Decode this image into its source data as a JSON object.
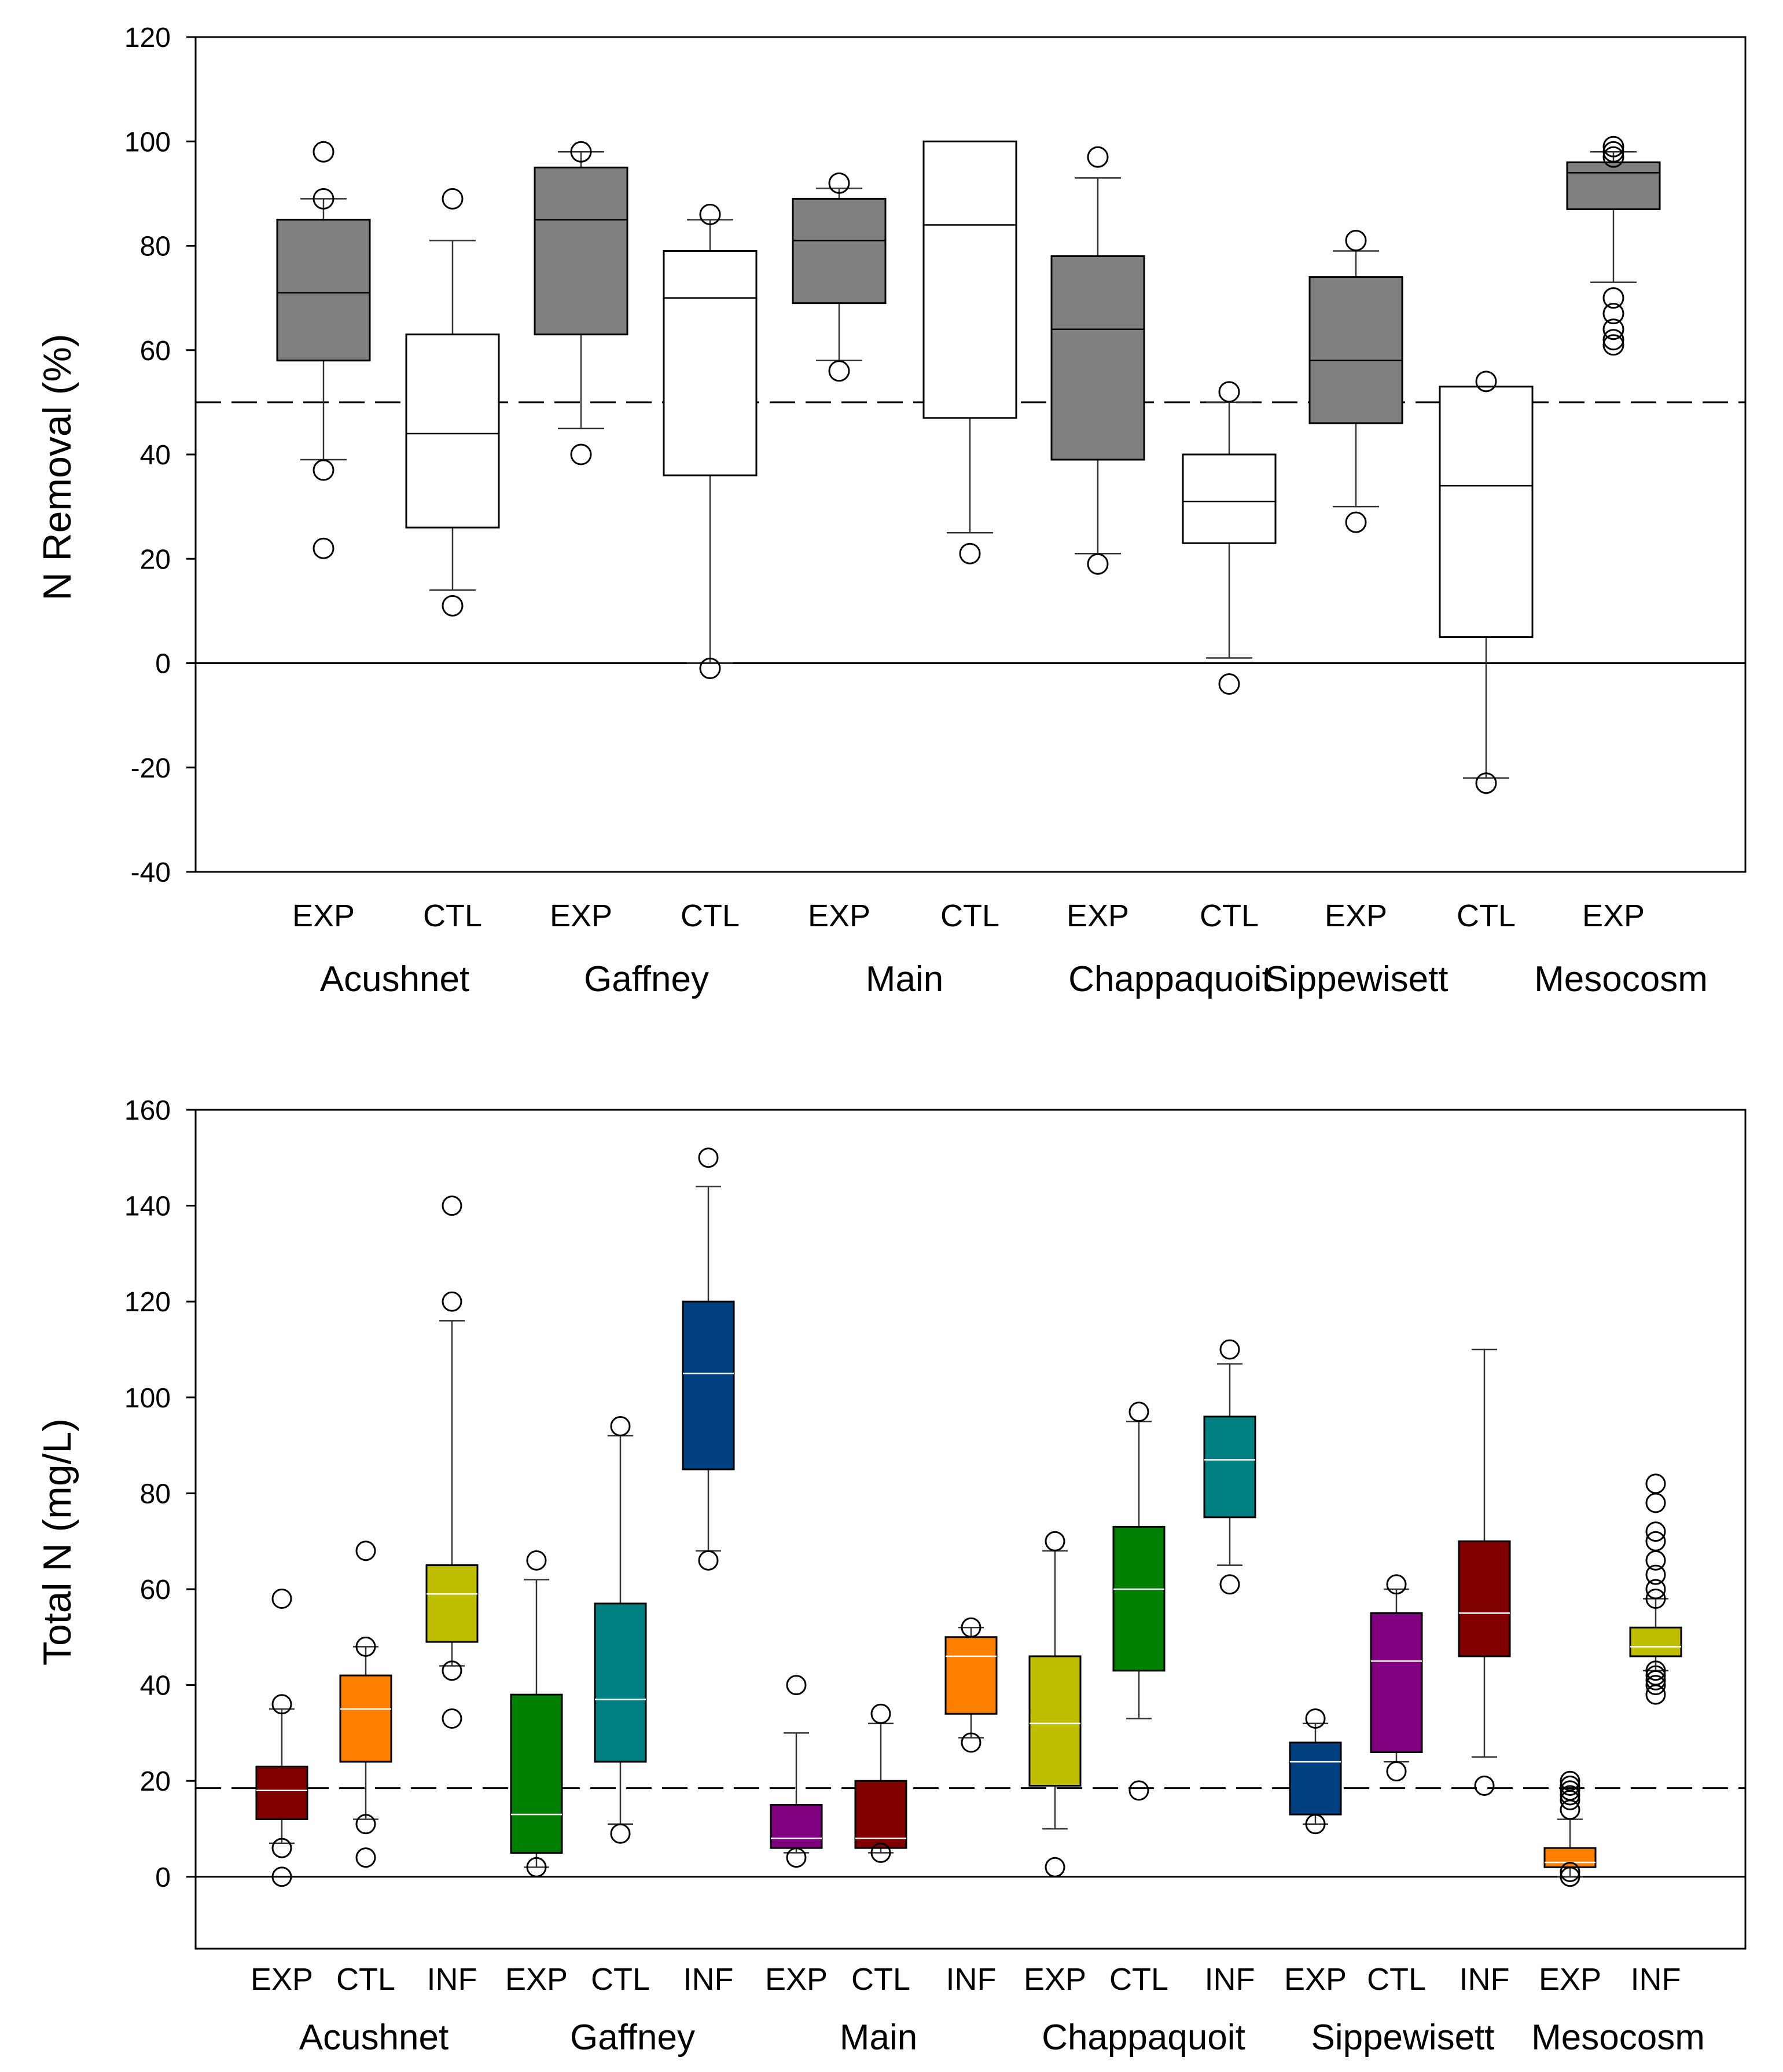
{
  "chart_data": [
    {
      "type": "box",
      "title": "",
      "ylabel": "N Removal (%)",
      "xlabel": "",
      "ylim": [
        -40,
        120
      ],
      "yticks": [
        -40,
        -20,
        0,
        20,
        40,
        60,
        80,
        100,
        120
      ],
      "reference_lines": [
        {
          "value": 50,
          "style": "dashed"
        },
        {
          "value": 0,
          "style": "solid"
        }
      ],
      "categories": [
        {
          "label": "EXP",
          "group": "Acushnet",
          "color": "#808080",
          "q1": 58,
          "median": 71,
          "q3": 85,
          "whisker_low": 39,
          "whisker_high": 89,
          "outliers": [
            22,
            37,
            89,
            98
          ]
        },
        {
          "label": "CTL",
          "group": "Acushnet",
          "color": "#ffffff",
          "q1": 26,
          "median": 44,
          "q3": 63,
          "whisker_low": 14,
          "whisker_high": 81,
          "outliers": [
            11,
            89
          ]
        },
        {
          "label": "EXP",
          "group": "Gaffney",
          "color": "#808080",
          "q1": 63,
          "median": 85,
          "q3": 95,
          "whisker_low": 45,
          "whisker_high": 98,
          "outliers": [
            40,
            98
          ]
        },
        {
          "label": "CTL",
          "group": "Gaffney",
          "color": "#ffffff",
          "q1": 36,
          "median": 70,
          "q3": 79,
          "whisker_low": 0,
          "whisker_high": 85,
          "outliers": [
            -1,
            86
          ]
        },
        {
          "label": "EXP",
          "group": "Main",
          "color": "#808080",
          "q1": 69,
          "median": 81,
          "q3": 89,
          "whisker_low": 58,
          "whisker_high": 91,
          "outliers": [
            56,
            92
          ]
        },
        {
          "label": "CTL",
          "group": "Main",
          "color": "#ffffff",
          "q1": 47,
          "median": 84,
          "q3": 100,
          "whisker_low": 25,
          "whisker_high": 100,
          "outliers": [
            21
          ]
        },
        {
          "label": "EXP",
          "group": "Chappaquoit",
          "color": "#808080",
          "q1": 39,
          "median": 64,
          "q3": 78,
          "whisker_low": 21,
          "whisker_high": 93,
          "outliers": [
            19,
            97
          ]
        },
        {
          "label": "CTL",
          "group": "Chappaquoit",
          "color": "#ffffff",
          "q1": 23,
          "median": 31,
          "q3": 40,
          "whisker_low": 1,
          "whisker_high": 50,
          "outliers": [
            -4,
            52
          ]
        },
        {
          "label": "EXP",
          "group": "Sippewisett",
          "color": "#808080",
          "q1": 46,
          "median": 58,
          "q3": 74,
          "whisker_low": 30,
          "whisker_high": 79,
          "outliers": [
            27,
            81
          ]
        },
        {
          "label": "CTL",
          "group": "Sippewisett",
          "color": "#ffffff",
          "q1": 5,
          "median": 34,
          "q3": 53,
          "whisker_low": -22,
          "whisker_high": 53,
          "outliers": [
            -23,
            54
          ]
        },
        {
          "label": "EXP",
          "group": "Mesocosm",
          "color": "#808080",
          "q1": 87,
          "median": 94,
          "q3": 96,
          "whisker_low": 73,
          "whisker_high": 98,
          "outliers": [
            61,
            62,
            64,
            67,
            70,
            97,
            98,
            99
          ]
        }
      ],
      "group_labels": [
        "Acushnet",
        "Gaffney",
        "Main",
        "Chappaquoit",
        "Sippewisett",
        "Mesocosm"
      ]
    },
    {
      "type": "box",
      "title": "",
      "ylabel": "Total N (mg/L)",
      "xlabel": "",
      "ylim": [
        -15,
        160
      ],
      "yticks": [
        0,
        20,
        40,
        60,
        80,
        100,
        120,
        140,
        160
      ],
      "reference_lines": [
        {
          "value": 18.5,
          "style": "dashed"
        },
        {
          "value": 0,
          "style": "solid"
        }
      ],
      "categories": [
        {
          "label": "EXP",
          "group": "Acushnet",
          "color": "#800000",
          "q1": 12,
          "median": 18,
          "q3": 23,
          "whisker_low": 7,
          "whisker_high": 35,
          "outliers": [
            0,
            6,
            36,
            58
          ]
        },
        {
          "label": "CTL",
          "group": "Acushnet",
          "color": "#ff8000",
          "q1": 24,
          "median": 35,
          "q3": 42,
          "whisker_low": 12,
          "whisker_high": 48,
          "outliers": [
            4,
            11,
            48,
            68
          ]
        },
        {
          "label": "INF",
          "group": "Acushnet",
          "color": "#bfbf00",
          "q1": 49,
          "median": 59,
          "q3": 65,
          "whisker_low": 44,
          "whisker_high": 116,
          "outliers": [
            33,
            43,
            120,
            140
          ]
        },
        {
          "label": "EXP",
          "group": "Gaffney",
          "color": "#008000",
          "q1": 5,
          "median": 13,
          "q3": 38,
          "whisker_low": 2,
          "whisker_high": 62,
          "outliers": [
            2,
            66
          ]
        },
        {
          "label": "CTL",
          "group": "Gaffney",
          "color": "#008080",
          "q1": 24,
          "median": 37,
          "q3": 57,
          "whisker_low": 11,
          "whisker_high": 92,
          "outliers": [
            9,
            94
          ]
        },
        {
          "label": "INF",
          "group": "Gaffney",
          "color": "#004080",
          "q1": 85,
          "median": 105,
          "q3": 120,
          "whisker_low": 68,
          "whisker_high": 144,
          "outliers": [
            66,
            150
          ]
        },
        {
          "label": "EXP",
          "group": "Main",
          "color": "#800080",
          "q1": 6,
          "median": 8,
          "q3": 15,
          "whisker_low": 5,
          "whisker_high": 30,
          "outliers": [
            4,
            40
          ]
        },
        {
          "label": "CTL",
          "group": "Main",
          "color": "#800000",
          "q1": 6,
          "median": 8,
          "q3": 20,
          "whisker_low": 5,
          "whisker_high": 32,
          "outliers": [
            5,
            34
          ]
        },
        {
          "label": "INF",
          "group": "Main",
          "color": "#ff8000",
          "q1": 34,
          "median": 46,
          "q3": 50,
          "whisker_low": 29,
          "whisker_high": 52,
          "outliers": [
            28,
            52
          ]
        },
        {
          "label": "EXP",
          "group": "Chappaquoit",
          "color": "#bfbf00",
          "q1": 19,
          "median": 32,
          "q3": 46,
          "whisker_low": 10,
          "whisker_high": 68,
          "outliers": [
            2,
            70
          ]
        },
        {
          "label": "CTL",
          "group": "Chappaquoit",
          "color": "#008000",
          "q1": 43,
          "median": 60,
          "q3": 73,
          "whisker_low": 33,
          "whisker_high": 95,
          "outliers": [
            18,
            97
          ]
        },
        {
          "label": "INF",
          "group": "Chappaquoit",
          "color": "#008080",
          "q1": 75,
          "median": 87,
          "q3": 96,
          "whisker_low": 65,
          "whisker_high": 107,
          "outliers": [
            61,
            110
          ]
        },
        {
          "label": "EXP",
          "group": "Sippewisett",
          "color": "#004080",
          "q1": 13,
          "median": 24,
          "q3": 28,
          "whisker_low": 11,
          "whisker_high": 32,
          "outliers": [
            11,
            33
          ]
        },
        {
          "label": "CTL",
          "group": "Sippewisett",
          "color": "#800080",
          "q1": 26,
          "median": 45,
          "q3": 55,
          "whisker_low": 24,
          "whisker_high": 60,
          "outliers": [
            22,
            61
          ]
        },
        {
          "label": "INF",
          "group": "Sippewisett",
          "color": "#800000",
          "q1": 46,
          "median": 55,
          "q3": 70,
          "whisker_low": 25,
          "whisker_high": 110,
          "outliers": [
            19
          ]
        },
        {
          "label": "EXP",
          "group": "Mesocosm",
          "color": "#ff8000",
          "q1": 2,
          "median": 3,
          "q3": 6,
          "whisker_low": 0,
          "whisker_high": 12,
          "outliers": [
            0,
            1,
            14,
            16,
            17,
            18,
            19,
            20
          ]
        },
        {
          "label": "INF",
          "group": "Mesocosm",
          "color": "#bfbf00",
          "q1": 46,
          "median": 48,
          "q3": 52,
          "whisker_low": 43,
          "whisker_high": 58,
          "outliers": [
            38,
            40,
            41,
            42,
            43,
            58,
            60,
            63,
            66,
            70,
            72,
            78,
            82
          ]
        }
      ],
      "group_labels": [
        "Acushnet",
        "Gaffney",
        "Main",
        "Chappaquoit",
        "Sippewisett",
        "Mesocosm"
      ]
    }
  ]
}
